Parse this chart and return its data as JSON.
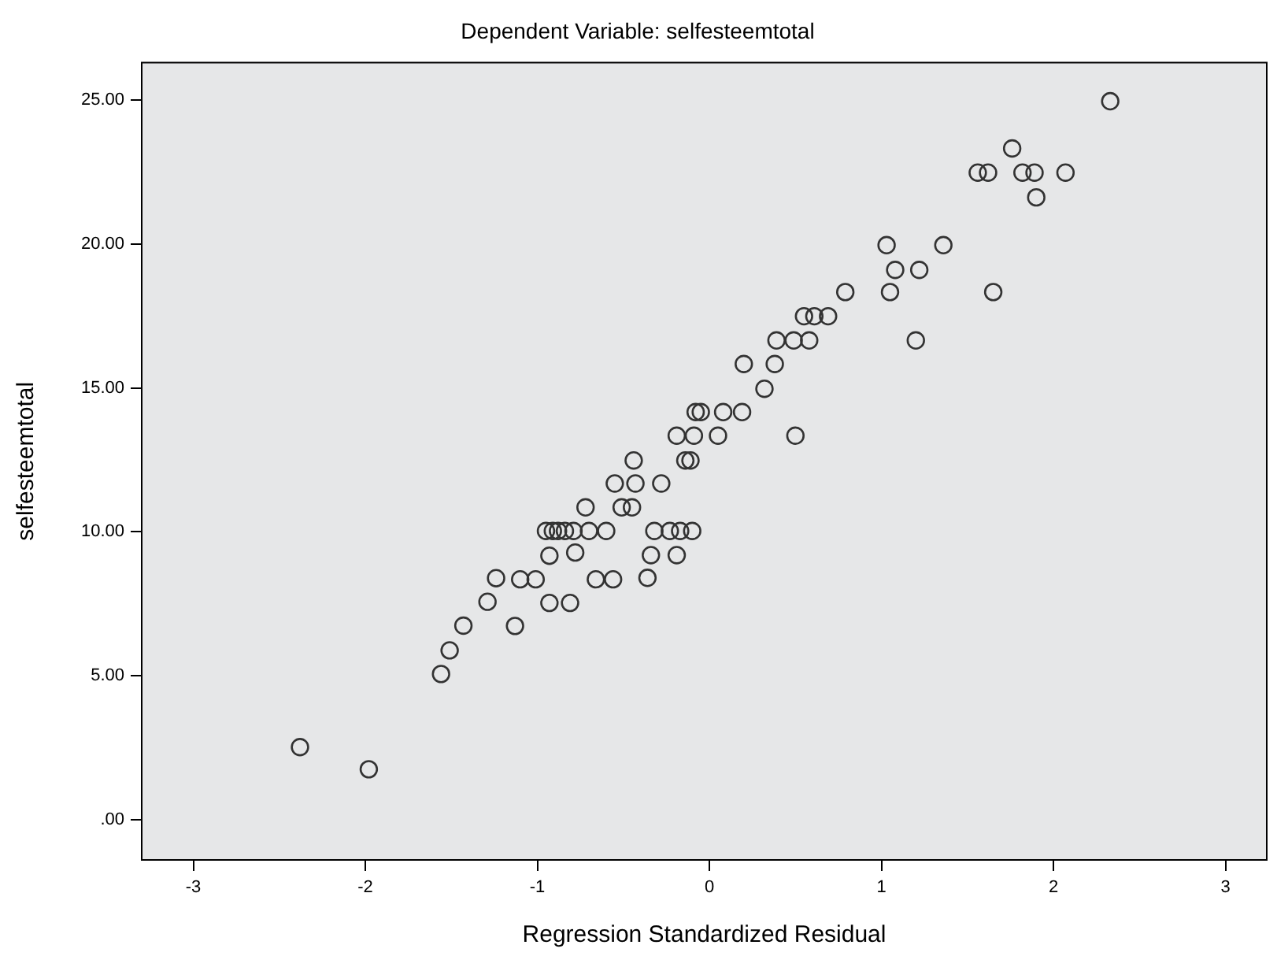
{
  "chart_data": {
    "type": "scatter",
    "title": "Dependent Variable: selfesteemtotal",
    "xlabel": "Regression Standardized Residual",
    "ylabel": "selfesteemtotal",
    "xlim": [
      -3.3,
      3.24
    ],
    "ylim": [
      -1.4,
      26.3
    ],
    "xticks": [
      -3,
      -2,
      -1,
      0,
      1,
      2,
      3
    ],
    "yticks": [
      {
        "value": 0,
        "label": ".00"
      },
      {
        "value": 5,
        "label": "5.00"
      },
      {
        "value": 10,
        "label": "10.00"
      },
      {
        "value": 15,
        "label": "15.00"
      },
      {
        "value": 20,
        "label": "20.00"
      },
      {
        "value": 25,
        "label": "25.00"
      }
    ],
    "grid": false,
    "legend": false,
    "marker": "circle",
    "series": [
      {
        "color": "#333333",
        "x": [
          -2.38,
          -1.98,
          -1.56,
          -1.51,
          -1.43,
          -1.13,
          -1.29,
          -0.93,
          -0.81,
          -1.24,
          -1.1,
          -1.01,
          -0.66,
          -0.56,
          -0.36,
          -0.93,
          -0.78,
          -0.34,
          -0.19,
          -0.95,
          -0.91,
          -0.88,
          -0.84,
          -0.79,
          -0.7,
          -0.6,
          -0.32,
          -0.23,
          -0.17,
          -0.1,
          -0.72,
          -0.51,
          -0.45,
          -0.55,
          -0.43,
          -0.28,
          -0.44,
          -0.14,
          -0.11,
          -0.19,
          -0.09,
          0.05,
          0.5,
          -0.08,
          -0.05,
          0.08,
          0.19,
          0.32,
          0.2,
          0.38,
          0.39,
          0.49,
          0.58,
          1.2,
          0.55,
          0.61,
          0.69,
          0.79,
          1.05,
          1.65,
          1.08,
          1.22,
          1.03,
          1.36,
          1.9,
          1.56,
          1.62,
          1.82,
          1.89,
          2.07,
          1.76,
          2.33
        ],
        "values": [
          2.52,
          1.75,
          5.06,
          5.88,
          6.74,
          6.73,
          7.57,
          7.53,
          7.53,
          8.39,
          8.35,
          8.35,
          8.35,
          8.35,
          8.4,
          9.17,
          9.28,
          9.19,
          9.19,
          10.03,
          10.03,
          10.03,
          10.03,
          10.03,
          10.03,
          10.03,
          10.03,
          10.03,
          10.03,
          10.03,
          10.85,
          10.85,
          10.85,
          11.68,
          11.68,
          11.68,
          12.48,
          12.48,
          12.48,
          13.34,
          13.34,
          13.34,
          13.34,
          14.16,
          14.16,
          14.16,
          14.16,
          14.97,
          15.83,
          15.83,
          16.65,
          16.65,
          16.65,
          16.65,
          17.49,
          17.49,
          17.49,
          18.33,
          18.33,
          18.33,
          19.1,
          19.1,
          19.96,
          19.96,
          21.62,
          22.48,
          22.48,
          22.48,
          22.48,
          22.48,
          23.32,
          24.96
        ]
      }
    ]
  }
}
